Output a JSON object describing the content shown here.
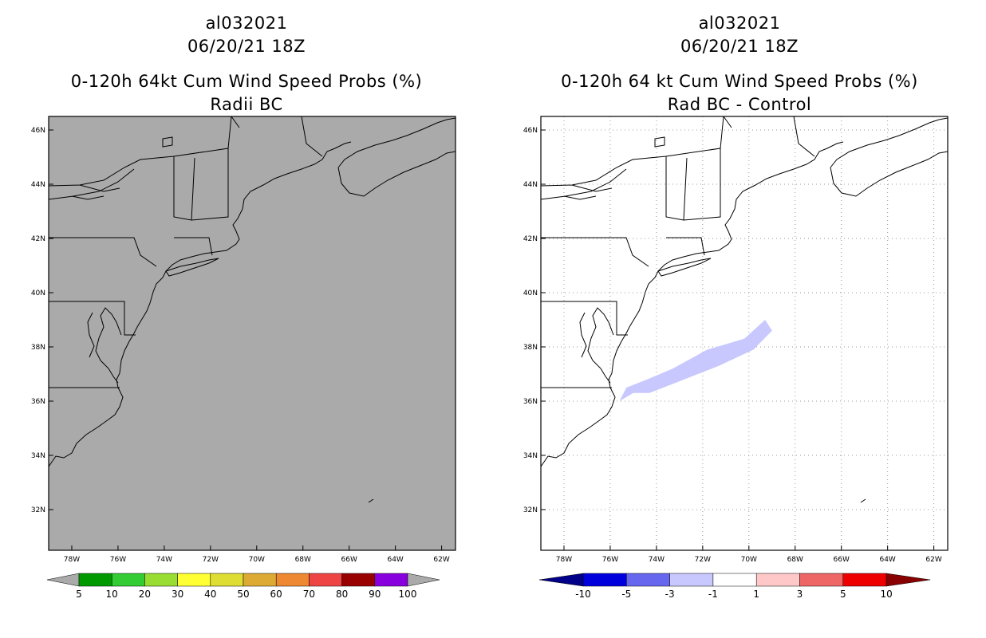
{
  "left_panel": {
    "title_line1": "al032021",
    "title_line2": "06/20/21 18Z",
    "title_line3": "0-120h 64kt Cum Wind Speed Probs (%)",
    "title_line4": "Radii BC",
    "background_color": "#aaaaaa",
    "colorbar": {
      "colors": [
        "#009900",
        "#33cc33",
        "#99dd33",
        "#ffff33",
        "#dddd33",
        "#ddaa33",
        "#ee8833",
        "#ee4444",
        "#990000",
        "#8800dd"
      ],
      "end_arrow_color": "#aaaaaa",
      "labels": [
        "5",
        "10",
        "20",
        "30",
        "40",
        "50",
        "60",
        "70",
        "80",
        "90",
        "100"
      ]
    }
  },
  "right_panel": {
    "title_line1": "al032021",
    "title_line2": "06/20/21 18Z",
    "title_line3": "0-120h 64 kt Cum Wind Speed Probs (%)",
    "title_line4": "Rad BC - Control",
    "background_color": "#ffffff",
    "swath_color": "#c8c8ff",
    "colorbar": {
      "colors": [
        "#0000dd",
        "#6666ee",
        "#c8c8ff",
        "#ffffff",
        "#ffc8c8",
        "#ee6666",
        "#ee0000"
      ],
      "left_arrow_color": "#000088",
      "right_arrow_color": "#880000",
      "labels": [
        "-10",
        "-5",
        "-3",
        "-1",
        "1",
        "3",
        "5",
        "10"
      ]
    },
    "swath_polygon_lonlat": [
      [
        -75.6,
        36.0
      ],
      [
        -75.3,
        36.5
      ],
      [
        -74.4,
        36.8
      ],
      [
        -73.3,
        37.2
      ],
      [
        -71.8,
        37.9
      ],
      [
        -70.2,
        38.3
      ],
      [
        -69.3,
        39.0
      ],
      [
        -69.0,
        38.6
      ],
      [
        -69.8,
        37.9
      ],
      [
        -71.3,
        37.3
      ],
      [
        -72.8,
        36.8
      ],
      [
        -74.3,
        36.3
      ],
      [
        -75.0,
        36.3
      ]
    ]
  },
  "map_axes": {
    "lon_ticks": [
      "78W",
      "76W",
      "74W",
      "72W",
      "70W",
      "68W",
      "66W",
      "64W",
      "62W"
    ],
    "lon_values": [
      -78,
      -76,
      -74,
      -72,
      -70,
      -68,
      -66,
      -64,
      -62
    ],
    "lat_ticks": [
      "46N",
      "44N",
      "42N",
      "40N",
      "38N",
      "36N",
      "34N",
      "32N"
    ],
    "lat_values": [
      46,
      44,
      42,
      40,
      38,
      36,
      34,
      32
    ],
    "lon_range": [
      -79,
      -61.4
    ],
    "lat_range": [
      30.5,
      46.5
    ]
  }
}
